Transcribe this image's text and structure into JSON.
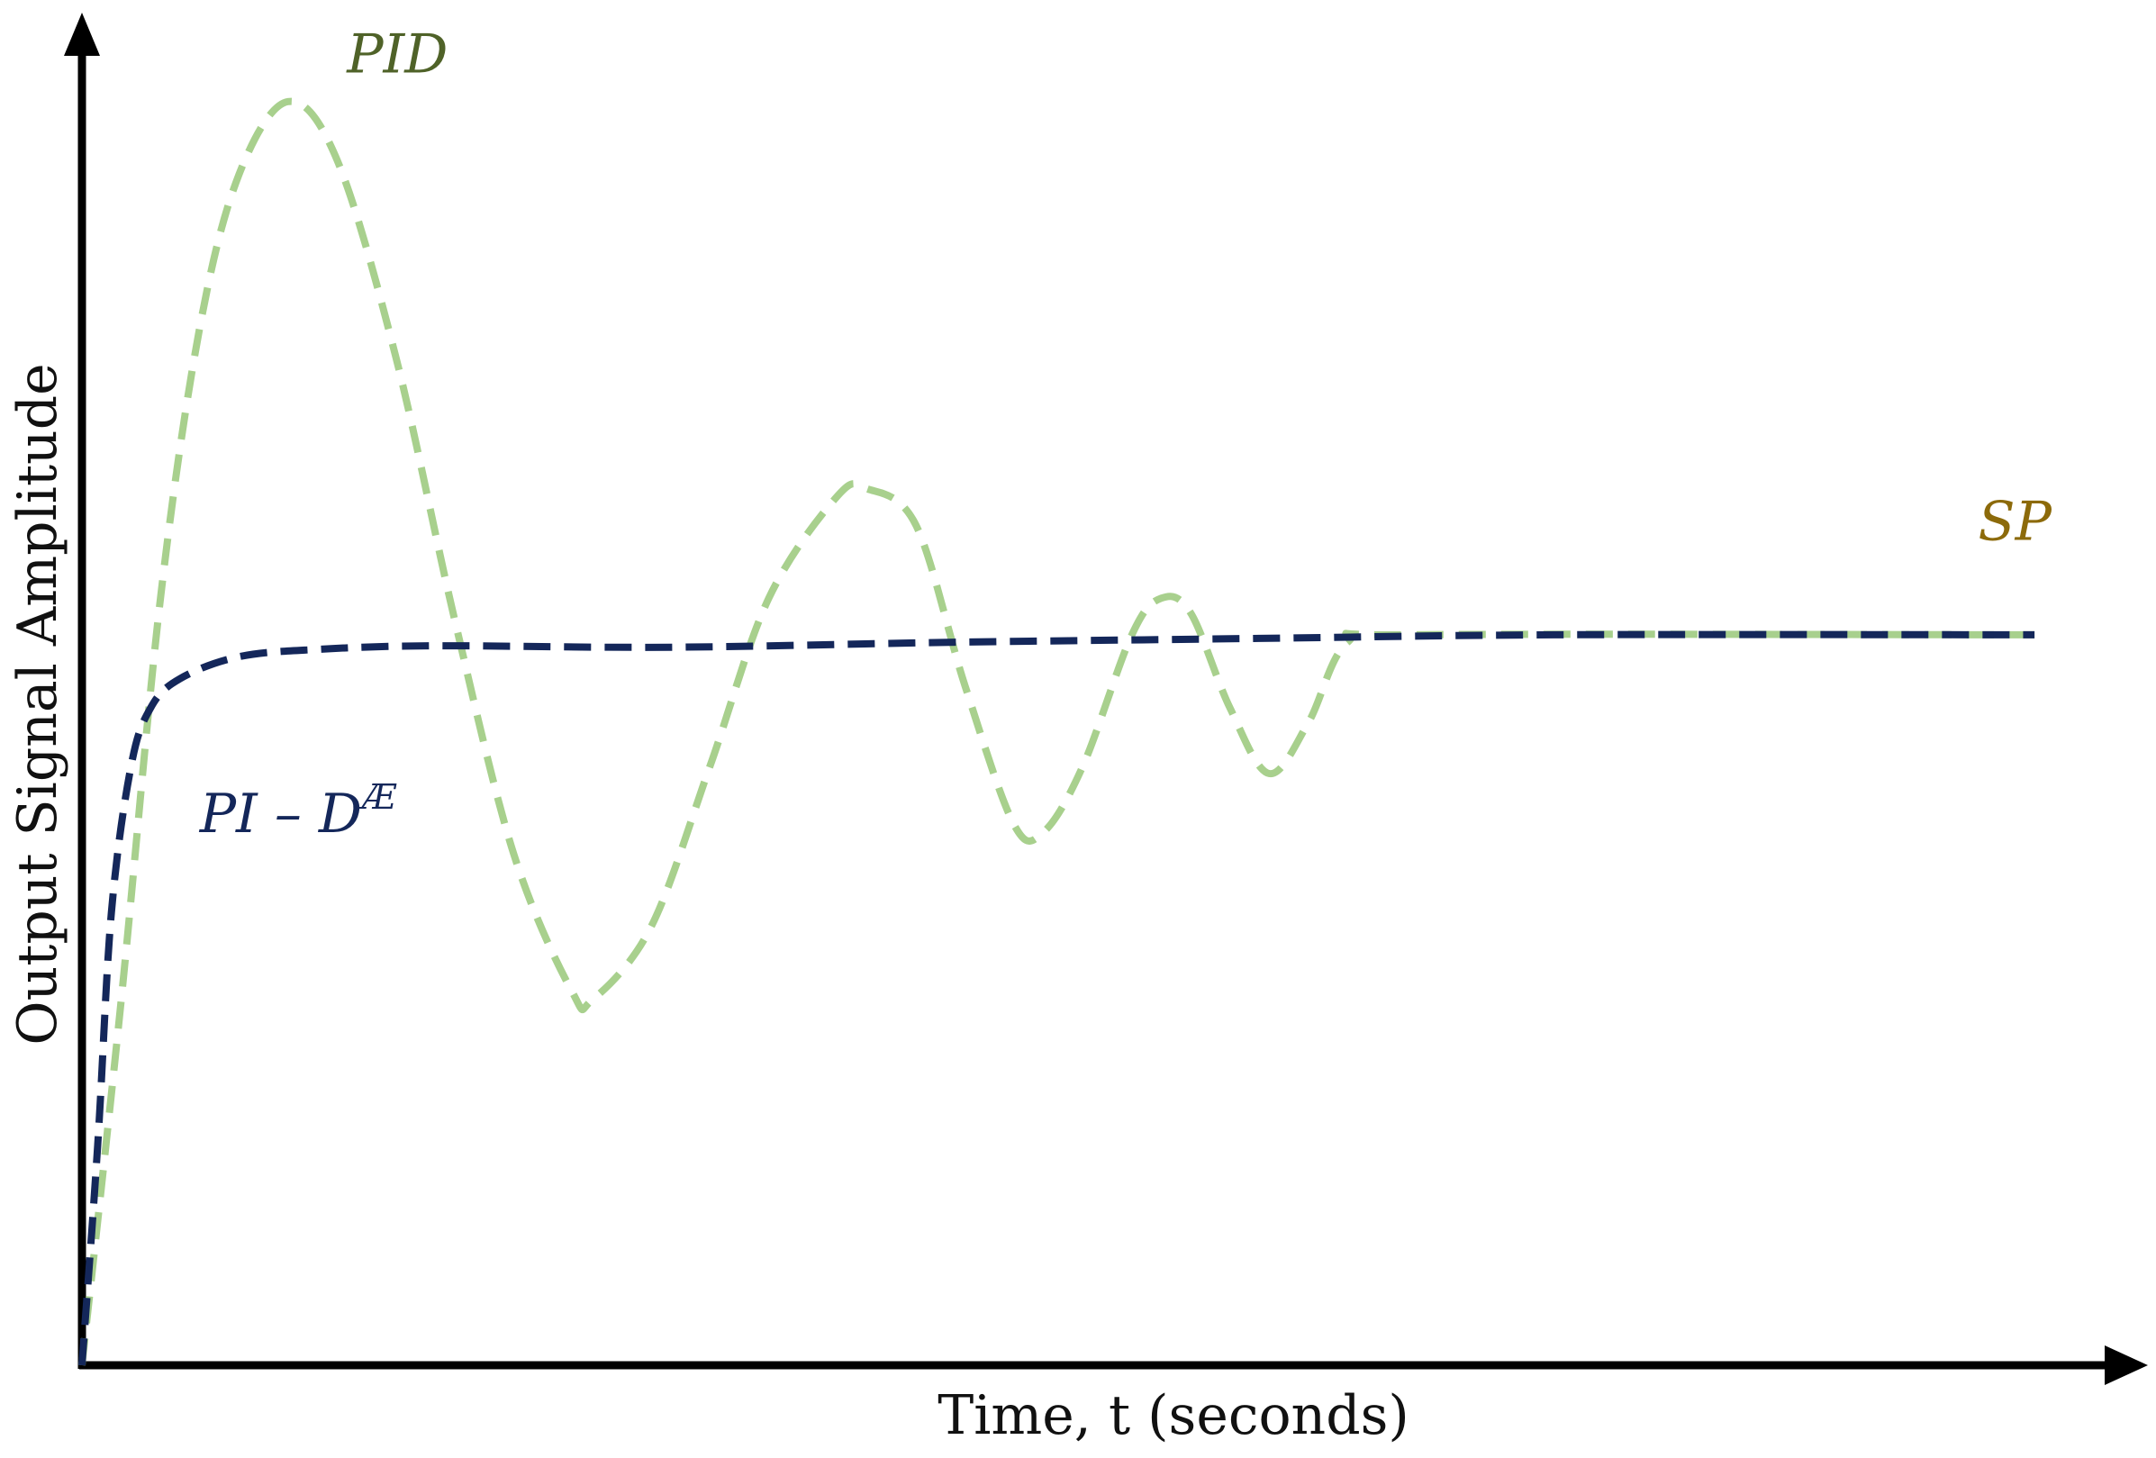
{
  "chart_data": {
    "type": "line",
    "title": "",
    "xlabel": "Time, t (seconds)",
    "ylabel": "Output Signal Amplitude",
    "xlim": [
      0,
      10
    ],
    "ylim": [
      0,
      1.8
    ],
    "grid": false,
    "legend": "inline labels",
    "series": [
      {
        "name": "SP",
        "color": "#F5B800",
        "end_color": "#7A5C00",
        "style": "solid",
        "points": [
          [
            0.05,
            1.0
          ],
          [
            9.95,
            1.0
          ]
        ]
      },
      {
        "name": "PID",
        "color": "#A8D08D",
        "style": "dashed",
        "points": [
          [
            0,
            0
          ],
          [
            0.2,
            0.5
          ],
          [
            0.4,
            1.05
          ],
          [
            0.6,
            1.42
          ],
          [
            0.8,
            1.63
          ],
          [
            1.05,
            1.73
          ],
          [
            1.3,
            1.65
          ],
          [
            1.6,
            1.38
          ],
          [
            1.9,
            1.02
          ],
          [
            2.2,
            0.7
          ],
          [
            2.5,
            0.51
          ],
          [
            2.6,
            0.5
          ],
          [
            2.9,
            0.6
          ],
          [
            3.2,
            0.82
          ],
          [
            3.5,
            1.05
          ],
          [
            3.85,
            1.19
          ],
          [
            4.0,
            1.2
          ],
          [
            4.25,
            1.15
          ],
          [
            4.5,
            0.93
          ],
          [
            4.75,
            0.74
          ],
          [
            4.9,
            0.73
          ],
          [
            5.1,
            0.82
          ],
          [
            5.35,
            1.0
          ],
          [
            5.5,
            1.05
          ],
          [
            5.65,
            1.03
          ],
          [
            5.85,
            0.9
          ],
          [
            6.05,
            0.81
          ],
          [
            6.25,
            0.88
          ],
          [
            6.45,
            0.99
          ],
          [
            6.8,
            1.0
          ],
          [
            9.95,
            1.0
          ]
        ]
      },
      {
        "name": "PI – D",
        "name_sup": "Æ",
        "color": "#14275A",
        "style": "dashed",
        "points": [
          [
            0,
            0
          ],
          [
            0.08,
            0.3
          ],
          [
            0.15,
            0.62
          ],
          [
            0.25,
            0.82
          ],
          [
            0.35,
            0.9
          ],
          [
            0.5,
            0.94
          ],
          [
            0.8,
            0.97
          ],
          [
            1.2,
            0.98
          ],
          [
            1.8,
            0.985
          ],
          [
            3.0,
            0.983
          ],
          [
            4.5,
            0.99
          ],
          [
            6.0,
            0.995
          ],
          [
            7.5,
            1.0
          ],
          [
            9.95,
            1.0
          ]
        ]
      }
    ],
    "annotations": [
      {
        "text": "PID",
        "series": "PID",
        "at": [
          1.35,
          1.77
        ],
        "color": "#4F6228"
      },
      {
        "text": "SP",
        "series": "SP",
        "at": [
          9.85,
          1.13
        ],
        "color": "#8C6A0A"
      },
      {
        "text": "PI – D",
        "sup": "Æ",
        "series": "PI – D",
        "at": [
          0.6,
          0.73
        ],
        "color": "#14275A"
      }
    ]
  }
}
